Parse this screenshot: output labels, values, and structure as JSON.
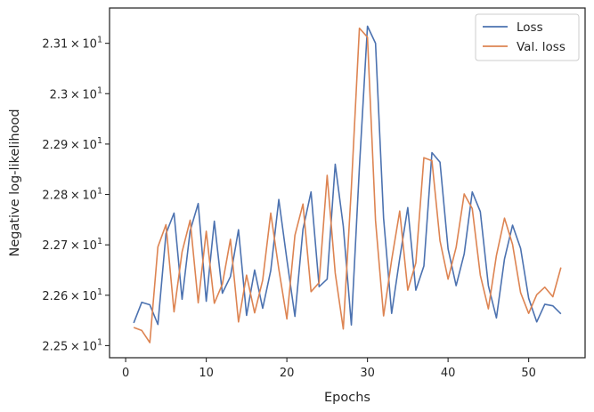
{
  "chart_data": {
    "type": "line",
    "xlabel": "Epochs",
    "ylabel": "Negative log-likelihood",
    "xlim": [
      -2,
      57
    ],
    "ylim": [
      22.476,
      23.17
    ],
    "xticks": [
      0,
      10,
      20,
      30,
      40,
      50
    ],
    "xtick_labels": [
      "0",
      "10",
      "20",
      "30",
      "40",
      "50"
    ],
    "yticks": [
      22.5,
      22.6,
      22.7,
      22.8,
      22.9,
      23.0,
      23.1
    ],
    "ytick_labels": [
      {
        "base": "2.25 × 10",
        "exp": "1"
      },
      {
        "base": "2.26 × 10",
        "exp": "1"
      },
      {
        "base": "2.27 × 10",
        "exp": "1"
      },
      {
        "base": "2.28 × 10",
        "exp": "1"
      },
      {
        "base": "2.29 × 10",
        "exp": "1"
      },
      {
        "base": "2.3 × 10",
        "exp": "1"
      },
      {
        "base": "2.31 × 10",
        "exp": "1"
      }
    ],
    "grid": false,
    "legend": "top-right",
    "x": [
      1,
      2,
      3,
      4,
      5,
      6,
      7,
      8,
      9,
      10,
      11,
      12,
      13,
      14,
      15,
      16,
      17,
      18,
      19,
      20,
      21,
      22,
      23,
      24,
      25,
      26,
      27,
      28,
      29,
      30,
      31,
      32,
      33,
      34,
      35,
      36,
      37,
      38,
      39,
      40,
      41,
      42,
      43,
      44,
      45,
      46,
      47,
      48,
      49,
      50,
      51,
      52,
      53,
      54
    ],
    "series": [
      {
        "name": "Loss",
        "color": "#4c72b0",
        "values": [
          22.545,
          22.586,
          22.581,
          22.542,
          22.722,
          22.763,
          22.592,
          22.728,
          22.782,
          22.588,
          22.747,
          22.604,
          22.637,
          22.73,
          22.56,
          22.65,
          22.574,
          22.649,
          22.79,
          22.671,
          22.558,
          22.731,
          22.805,
          22.617,
          22.632,
          22.86,
          22.737,
          22.541,
          22.854,
          23.134,
          23.1,
          22.753,
          22.564,
          22.673,
          22.774,
          22.61,
          22.658,
          22.883,
          22.864,
          22.692,
          22.619,
          22.682,
          22.805,
          22.766,
          22.619,
          22.555,
          22.672,
          22.739,
          22.693,
          22.594,
          22.547,
          22.582,
          22.579,
          22.563
        ]
      },
      {
        "name": "Val. loss",
        "color": "#dd8452",
        "values": [
          22.536,
          22.53,
          22.506,
          22.696,
          22.74,
          22.567,
          22.686,
          22.749,
          22.585,
          22.727,
          22.584,
          22.622,
          22.711,
          22.547,
          22.64,
          22.565,
          22.63,
          22.763,
          22.652,
          22.553,
          22.719,
          22.781,
          22.607,
          22.625,
          22.838,
          22.644,
          22.533,
          22.813,
          23.13,
          23.112,
          22.748,
          22.559,
          22.67,
          22.767,
          22.61,
          22.664,
          22.873,
          22.867,
          22.708,
          22.632,
          22.695,
          22.801,
          22.772,
          22.64,
          22.573,
          22.679,
          22.753,
          22.701,
          22.605,
          22.564,
          22.601,
          22.616,
          22.597,
          22.655
        ]
      }
    ]
  }
}
